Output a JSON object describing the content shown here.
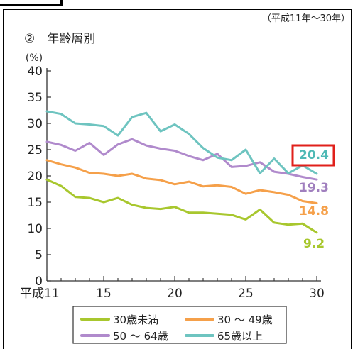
{
  "period_note": "（平成11年〜30年）",
  "subtitle": "②　年齢層別",
  "chart_data": {
    "type": "line",
    "x": [
      11,
      12,
      13,
      14,
      15,
      16,
      17,
      18,
      19,
      20,
      21,
      22,
      23,
      24,
      25,
      26,
      27,
      28,
      29,
      30
    ],
    "x_ticks": [
      {
        "value": 11,
        "label": "平成11"
      },
      {
        "value": 15,
        "label": "15"
      },
      {
        "value": 20,
        "label": "20"
      },
      {
        "value": 25,
        "label": "25"
      },
      {
        "value": 30,
        "label": "30"
      }
    ],
    "xlim": [
      11,
      30
    ],
    "ylabel": "(%)",
    "ylim": [
      0,
      40
    ],
    "y_ticks": [
      "0",
      "5",
      "10",
      "15",
      "20",
      "25",
      "30",
      "35",
      "40"
    ],
    "grid": false,
    "legend_position": "bottom",
    "series": [
      {
        "name": "30歳未満",
        "color": "#a8c72e",
        "values": [
          19.3,
          18.1,
          16.0,
          15.8,
          15.0,
          15.8,
          14.5,
          13.9,
          13.7,
          14.1,
          13.0,
          13.0,
          12.8,
          12.6,
          11.7,
          13.6,
          11.1,
          10.7,
          10.9,
          9.2
        ],
        "end_label": "9.2",
        "label_color": "#a8c72e"
      },
      {
        "name": "30 〜 49歳",
        "color": "#f5a04a",
        "values": [
          23.0,
          22.2,
          21.6,
          20.6,
          20.4,
          20.0,
          20.4,
          19.5,
          19.2,
          18.4,
          18.9,
          18.0,
          18.2,
          17.9,
          16.6,
          17.3,
          16.9,
          16.4,
          15.2,
          14.8
        ],
        "end_label": "14.8",
        "label_color": "#f5a04a"
      },
      {
        "name": "50 〜 64歳",
        "color": "#b08acc",
        "values": [
          26.5,
          25.9,
          24.8,
          26.3,
          24.0,
          26.0,
          27.0,
          25.8,
          25.2,
          24.8,
          23.8,
          23.0,
          24.2,
          21.7,
          21.9,
          22.6,
          20.8,
          20.4,
          19.8,
          19.3
        ],
        "end_label": "19.3",
        "label_color": "#a07fbe"
      },
      {
        "name": "65歳以上",
        "color": "#6ec4c0",
        "values": [
          32.3,
          31.8,
          30.0,
          29.8,
          29.5,
          27.7,
          31.2,
          32.0,
          28.5,
          29.8,
          28.0,
          25.3,
          23.5,
          23.0,
          25.0,
          20.5,
          23.3,
          20.5,
          22.0,
          20.4
        ],
        "end_label": "20.4",
        "label_color": "#4fb9b5",
        "end_label_boxed": true,
        "box_color": "#e0201b"
      }
    ]
  }
}
